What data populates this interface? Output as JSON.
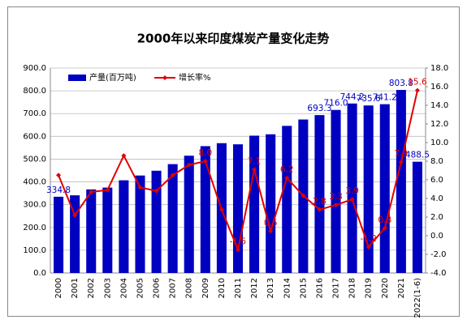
{
  "chart_data": {
    "type": "bar-line",
    "title": "2000年以来印度煤炭产量变化走势",
    "categories": [
      "2000",
      "2001",
      "2002",
      "2003",
      "2004",
      "2005",
      "2006",
      "2007",
      "2008",
      "2009",
      "2010",
      "2011",
      "2012",
      "2013",
      "2014",
      "2015",
      "2016",
      "2017",
      "2018",
      "2019",
      "2020",
      "2021",
      "2022(1-6)"
    ],
    "series": [
      {
        "name": "产量(百万吨)",
        "color": "#0000c0",
        "axis": "y",
        "values": [
          334.8,
          341,
          367,
          375,
          407,
          428,
          449,
          478,
          515,
          557,
          570,
          565,
          603,
          609,
          646,
          674,
          693.3,
          716.0,
          744.2,
          735.6,
          741.2,
          803.8,
          488.5
        ],
        "value_labels": [
          "334.8",
          null,
          null,
          null,
          null,
          null,
          null,
          null,
          null,
          null,
          null,
          null,
          null,
          null,
          null,
          null,
          "693.3",
          "716.0",
          "744.2",
          "735.6",
          "741.2",
          "803.8",
          "488.5"
        ],
        "label_color": "#0000c0"
      },
      {
        "name": "增长率%",
        "color": "#e00000",
        "axis": "y2",
        "values": [
          6.5,
          2.2,
          4.7,
          4.9,
          8.6,
          5.2,
          4.8,
          6.5,
          7.6,
          8.0,
          2.8,
          -1.5,
          7.1,
          0.5,
          6.2,
          4.3,
          2.8,
          3.3,
          3.9,
          -1.2,
          0.8,
          7.9,
          15.6
        ],
        "value_labels": [
          null,
          null,
          null,
          null,
          null,
          null,
          null,
          null,
          null,
          "8.0",
          null,
          "-1.5",
          "7.1",
          "0.5",
          "6.2",
          null,
          "2.8",
          "3.3",
          "3.9",
          "-1.2",
          "0.8",
          "7.9",
          "15.6"
        ],
        "label_color": "#e00000"
      }
    ],
    "ylim": [
      0,
      900
    ],
    "yticks": [
      {
        "value": 0,
        "label": "0.0"
      },
      {
        "value": 100,
        "label": "100.0"
      },
      {
        "value": 200,
        "label": "200.0"
      },
      {
        "value": 300,
        "label": "300.0"
      },
      {
        "value": 400,
        "label": "400.0"
      },
      {
        "value": 500,
        "label": "500.0"
      },
      {
        "value": 600,
        "label": "600.0"
      },
      {
        "value": 700,
        "label": "700.0"
      },
      {
        "value": 800,
        "label": "800.0"
      },
      {
        "value": 900,
        "label": "900.0"
      }
    ],
    "y2lim": [
      -4,
      18
    ],
    "y2ticks": [
      {
        "value": -4,
        "label": "-4.0"
      },
      {
        "value": -2,
        "label": "-2.0"
      },
      {
        "value": 0,
        "label": "0.0"
      },
      {
        "value": 2,
        "label": "2.0"
      },
      {
        "value": 4,
        "label": "4.0"
      },
      {
        "value": 6,
        "label": "6.0"
      },
      {
        "value": 8,
        "label": "8.0"
      },
      {
        "value": 10,
        "label": "10.0"
      },
      {
        "value": 12,
        "label": "12.0"
      },
      {
        "value": 14,
        "label": "14.0"
      },
      {
        "value": 16,
        "label": "16.0"
      },
      {
        "value": 18,
        "label": "18.0"
      }
    ],
    "grid": true,
    "legend": "top-left"
  }
}
